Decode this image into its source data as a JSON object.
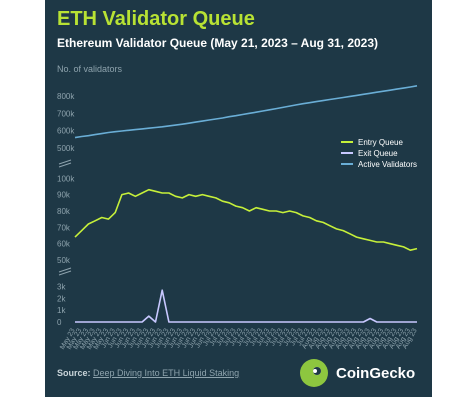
{
  "title": "ETH Validator Queue",
  "subtitle": "Ethereum Validator Queue (May 21, 2023 – Aug 31, 2023)",
  "footer": {
    "source_label": "Source:",
    "source_text": "Deep Diving Into ETH Liquid Staking"
  },
  "brand": {
    "name": "CoinGecko",
    "logo_icon": "gecko-logo-icon"
  },
  "colors": {
    "entry": "#c6f03a",
    "exit": "#c8c8ff",
    "active": "#6aaed6",
    "background": "#1e3846",
    "title": "#b8e234"
  },
  "chart_data": {
    "type": "line",
    "ylabel": "No. of validators",
    "x": [
      "May 23",
      "May 23",
      "May 23",
      "May 23",
      "May 23",
      "May 23",
      "Jun 23",
      "Jun 23",
      "Jun 23",
      "Jun 23",
      "Jun 23",
      "Jun 23",
      "Jun 23",
      "Jun 23",
      "Jun 23",
      "Jun 23",
      "Jun 23",
      "Jun 23",
      "Jun 23",
      "Jun 23",
      "Jun 23",
      "Jul 23",
      "Jul 23",
      "Jul 23",
      "Jul 23",
      "Jul 23",
      "Jul 23",
      "Jul 23",
      "Jul 23",
      "Jul 23",
      "Jul 23",
      "Jul 23",
      "Jul 23",
      "Jul 23",
      "Jul 23",
      "Jul 23",
      "Aug 23",
      "Aug 23",
      "Aug 23",
      "Aug 23",
      "Aug 23",
      "Aug 23",
      "Aug 23",
      "Aug 23",
      "Aug 23",
      "Aug 23",
      "Aug 23",
      "Aug 23",
      "Aug 23",
      "Aug 23",
      "Aug 23",
      "Aug 23"
    ],
    "legend": {
      "position": "right",
      "items": [
        "Entry Queue",
        "Exit Queue",
        "Active Validators"
      ]
    },
    "panels": [
      {
        "name": "active",
        "yticks": [
          "500k",
          "600k",
          "700k",
          "800k"
        ],
        "ylim": [
          500000,
          880000
        ]
      },
      {
        "name": "entry",
        "yticks": [
          "50k",
          "60k",
          "70k",
          "80k",
          "90k",
          "100k"
        ],
        "ylim": [
          50000,
          102000
        ]
      },
      {
        "name": "exit",
        "yticks": [
          "0",
          "1k",
          "2k",
          "3k"
        ],
        "ylim": [
          0,
          3400
        ]
      }
    ],
    "series": [
      {
        "name": "Active Validators",
        "panel": "active",
        "values": [
          560000,
          566000,
          571000,
          577000,
          583000,
          589000,
          594000,
          598000,
          602000,
          606000,
          610000,
          614000,
          618000,
          622000,
          627000,
          632000,
          637000,
          643000,
          649000,
          655000,
          661000,
          667000,
          673000,
          680000,
          686000,
          693000,
          700000,
          706000,
          713000,
          720000,
          727000,
          734000,
          741000,
          748000,
          755000,
          761000,
          767000,
          773000,
          779000,
          785000,
          791000,
          797000,
          803000,
          809000,
          815000,
          821000,
          827000,
          833000,
          839000,
          845000,
          851000,
          858000
        ]
      },
      {
        "name": "Entry Queue",
        "panel": "entry",
        "values": [
          64000,
          68000,
          72000,
          74000,
          76000,
          75000,
          79000,
          90000,
          91000,
          89000,
          91000,
          93000,
          92000,
          91000,
          91000,
          89000,
          88000,
          90000,
          89000,
          90000,
          89000,
          88000,
          86000,
          85000,
          83000,
          82000,
          80000,
          82000,
          81000,
          80000,
          80000,
          79000,
          80000,
          79000,
          77000,
          76000,
          74000,
          73000,
          71000,
          69000,
          68000,
          66000,
          64000,
          63000,
          62000,
          61000,
          61000,
          60000,
          59000,
          58000,
          56000,
          57000
        ]
      },
      {
        "name": "Exit Queue",
        "panel": "exit",
        "values": [
          0,
          0,
          0,
          0,
          0,
          0,
          0,
          0,
          0,
          0,
          0,
          500,
          0,
          2700,
          0,
          0,
          0,
          0,
          0,
          0,
          0,
          0,
          0,
          0,
          0,
          0,
          0,
          0,
          0,
          0,
          0,
          0,
          0,
          0,
          0,
          0,
          0,
          0,
          0,
          0,
          0,
          0,
          0,
          0,
          300,
          0,
          0,
          0,
          0,
          0,
          0,
          0
        ]
      }
    ]
  }
}
